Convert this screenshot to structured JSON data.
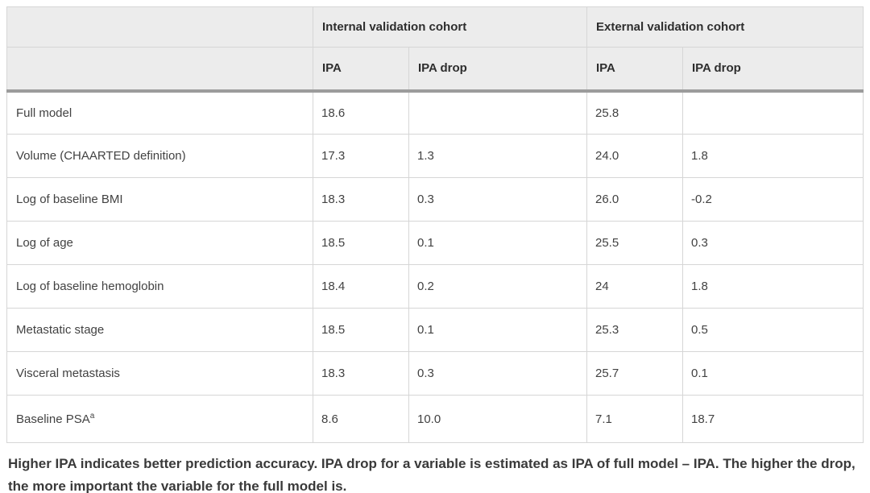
{
  "table": {
    "groups": [
      {
        "label": "Internal validation cohort"
      },
      {
        "label": "External validation cohort"
      }
    ],
    "sub_headers": [
      "IPA",
      "IPA drop",
      "IPA",
      "IPA drop"
    ],
    "rows": [
      {
        "label": "Full model",
        "label_sup": "",
        "values": [
          "18.6",
          "",
          "25.8",
          ""
        ]
      },
      {
        "label": "Volume (CHAARTED definition)",
        "label_sup": "",
        "values": [
          "17.3",
          "1.3",
          "24.0",
          "1.8"
        ]
      },
      {
        "label": "Log of baseline BMI",
        "label_sup": "",
        "values": [
          "18.3",
          "0.3",
          "26.0",
          "-0.2"
        ]
      },
      {
        "label": "Log of age",
        "label_sup": "",
        "values": [
          "18.5",
          "0.1",
          "25.5",
          "0.3"
        ]
      },
      {
        "label": "Log of baseline hemoglobin",
        "label_sup": "",
        "values": [
          "18.4",
          "0.2",
          "24",
          "1.8"
        ]
      },
      {
        "label": "Metastatic stage",
        "label_sup": "",
        "values": [
          "18.5",
          "0.1",
          "25.3",
          "0.5"
        ]
      },
      {
        "label": "Visceral metastasis",
        "label_sup": "",
        "values": [
          "18.3",
          "0.3",
          "25.7",
          "0.1"
        ]
      },
      {
        "label": "Baseline PSA",
        "label_sup": "a",
        "values": [
          "8.6",
          "10.0",
          "7.1",
          "18.7"
        ]
      }
    ]
  },
  "footnote": "Higher IPA indicates better prediction accuracy. IPA drop for a variable is estimated as IPA of full model – IPA. The higher the drop, the more important the variable for the full model is.",
  "colors": {
    "header_background": "#ececec",
    "grid_border": "#d6d6d6",
    "header_divider": "#9c9c9c",
    "cell_text": "#424242",
    "footnote_text": "#3a3a3a"
  }
}
